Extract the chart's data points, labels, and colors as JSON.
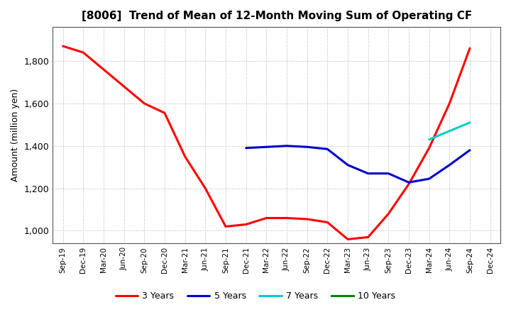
{
  "title": "[8006]  Trend of Mean of 12-Month Moving Sum of Operating CF",
  "ylabel": "Amount (million yen)",
  "ylim": [
    940,
    1960
  ],
  "yticks": [
    1000,
    1200,
    1400,
    1600,
    1800
  ],
  "background_color": "#ffffff",
  "plot_bg_color": "#ffffff",
  "grid_color": "#999999",
  "x_labels": [
    "Sep-19",
    "Dec-19",
    "Mar-20",
    "Jun-20",
    "Sep-20",
    "Dec-20",
    "Mar-21",
    "Jun-21",
    "Sep-21",
    "Dec-21",
    "Mar-22",
    "Jun-22",
    "Sep-22",
    "Dec-22",
    "Mar-23",
    "Jun-23",
    "Sep-23",
    "Dec-23",
    "Mar-24",
    "Jun-24",
    "Sep-24",
    "Dec-24"
  ],
  "series": {
    "3 Years": {
      "color": "#ff0000",
      "data_x": [
        "Sep-19",
        "Dec-19",
        "Mar-20",
        "Jun-20",
        "Sep-20",
        "Dec-20",
        "Mar-21",
        "Jun-21",
        "Sep-21",
        "Dec-21",
        "Mar-22",
        "Jun-22",
        "Sep-22",
        "Dec-22",
        "Mar-23",
        "Jun-23",
        "Sep-23",
        "Dec-23",
        "Mar-24",
        "Jun-24",
        "Sep-24"
      ],
      "data_y": [
        1870,
        1840,
        1760,
        1680,
        1600,
        1555,
        1350,
        1200,
        1020,
        1030,
        1060,
        1060,
        1055,
        1040,
        960,
        970,
        1080,
        1220,
        1390,
        1600,
        1860
      ]
    },
    "5 Years": {
      "color": "#0000cc",
      "data_x": [
        "Dec-21",
        "Mar-22",
        "Jun-22",
        "Sep-22",
        "Dec-22",
        "Mar-23",
        "Jun-23",
        "Sep-23",
        "Dec-23",
        "Mar-24",
        "Jun-24",
        "Sep-24"
      ],
      "data_y": [
        1390,
        1395,
        1400,
        1395,
        1385,
        1310,
        1270,
        1270,
        1228,
        1245,
        1310,
        1380
      ]
    },
    "7 Years": {
      "color": "#00cccc",
      "data_x": [
        "Mar-24",
        "Jun-24",
        "Sep-24"
      ],
      "data_y": [
        1430,
        1470,
        1510
      ]
    },
    "10 Years": {
      "color": "#008800",
      "data_x": [],
      "data_y": []
    }
  },
  "legend_order": [
    "3 Years",
    "5 Years",
    "7 Years",
    "10 Years"
  ]
}
